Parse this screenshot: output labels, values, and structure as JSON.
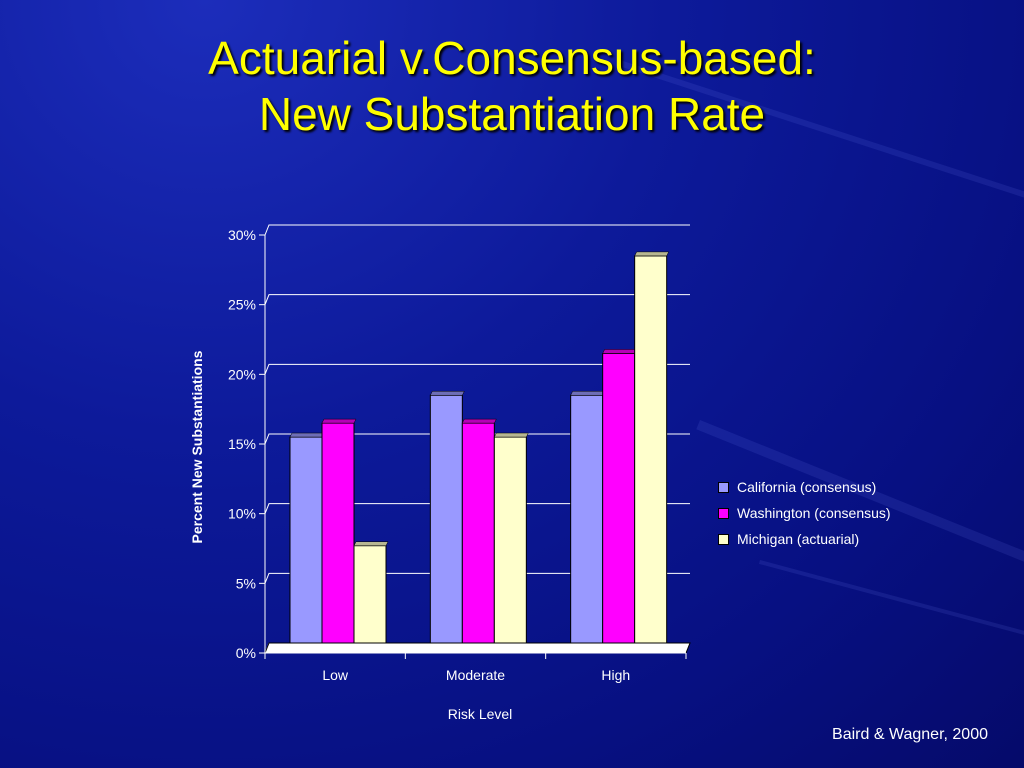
{
  "slide": {
    "title_line1": "Actuarial v.Consensus-based:",
    "title_line2": "New Substantiation Rate",
    "citation": "Baird & Wagner, 2000"
  },
  "colors": {
    "title": "#ffff00",
    "California (consensus)": "#9999ff",
    "Washington (consensus)": "#ff00ff",
    "Michigan (actuarial)": "#ffffcc"
  },
  "chart_data": {
    "type": "bar",
    "title": "",
    "xlabel": "Risk Level",
    "ylabel": "Percent New Substantiations",
    "categories": [
      "Low",
      "Moderate",
      "High"
    ],
    "series": [
      {
        "name": "California (consensus)",
        "values": [
          15.5,
          18.5,
          18.5
        ]
      },
      {
        "name": "Washington (consensus)",
        "values": [
          16.5,
          16.5,
          21.5
        ]
      },
      {
        "name": "Michigan (actuarial)",
        "values": [
          7.7,
          15.5,
          28.5
        ]
      }
    ],
    "ylim": [
      0,
      30
    ],
    "yticks": [
      "0%",
      "5%",
      "10%",
      "15%",
      "20%",
      "25%",
      "30%"
    ],
    "grid": true,
    "legend": "right"
  }
}
